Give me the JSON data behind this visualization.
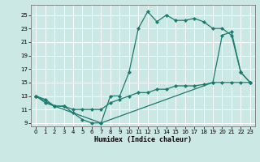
{
  "xlabel": "Humidex (Indice chaleur)",
  "bg_color": "#cce8e4",
  "grid_color": "#ffffff",
  "line_color": "#1a7a6e",
  "xlim": [
    -0.5,
    23.5
  ],
  "ylim": [
    8.5,
    26.5
  ],
  "xticks": [
    0,
    1,
    2,
    3,
    4,
    5,
    6,
    7,
    8,
    9,
    10,
    11,
    12,
    13,
    14,
    15,
    16,
    17,
    18,
    19,
    20,
    21,
    22,
    23
  ],
  "yticks": [
    9,
    11,
    13,
    15,
    17,
    19,
    21,
    23,
    25
  ],
  "curve1_x": [
    0,
    1,
    2,
    3,
    4,
    5,
    6,
    7,
    8,
    9,
    10,
    11,
    12,
    13,
    14,
    15,
    16,
    17,
    18,
    19,
    20,
    21,
    22,
    23
  ],
  "curve1_y": [
    13,
    12.5,
    11.5,
    11.5,
    10.5,
    9.5,
    9,
    9,
    13,
    13,
    16.5,
    23,
    25.5,
    24,
    25,
    24.2,
    24.2,
    24.5,
    24,
    23,
    23,
    22,
    16.5,
    15
  ],
  "curve2_x": [
    0,
    1,
    2,
    3,
    4,
    5,
    6,
    7,
    8,
    9,
    10,
    11,
    12,
    13,
    14,
    15,
    16,
    17,
    18,
    19,
    20,
    21,
    22,
    23
  ],
  "curve2_y": [
    13,
    12,
    11.5,
    11.5,
    11,
    11,
    11,
    11,
    12,
    12.5,
    13,
    13.5,
    13.5,
    14,
    14,
    14.5,
    14.5,
    14.5,
    14.7,
    15,
    15,
    15,
    15,
    15
  ],
  "curve3_x": [
    0,
    2,
    7,
    19,
    20,
    21,
    22,
    23
  ],
  "curve3_y": [
    13,
    11.5,
    9,
    15,
    22,
    22.5,
    16.5,
    15
  ]
}
